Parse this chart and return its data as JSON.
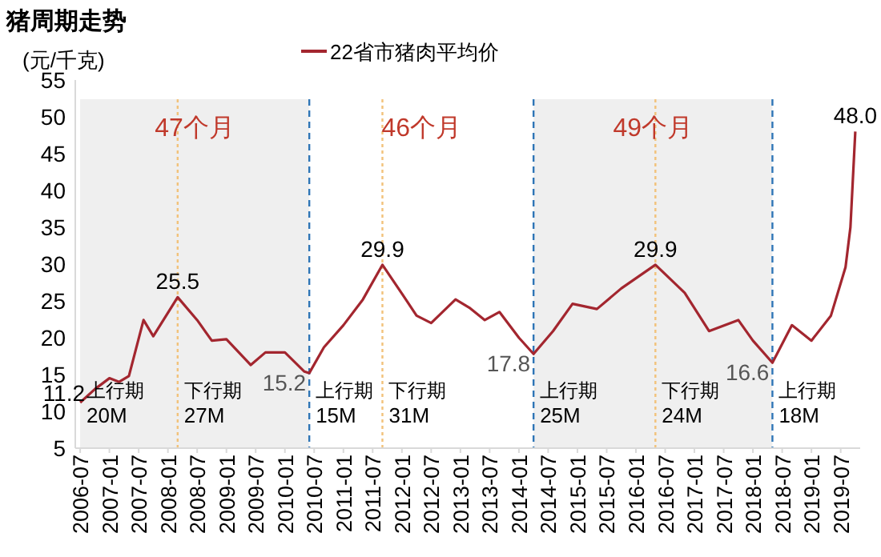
{
  "chart_data": {
    "type": "line",
    "title": "猪周期走势",
    "ylabel": "(元/千克)",
    "legend": "top",
    "x": [
      "2006-07",
      "2006-10",
      "2007-01",
      "2007-03",
      "2007-05",
      "2007-08",
      "2007-10",
      "2008-03",
      "2008-07",
      "2008-10",
      "2009-01",
      "2009-06",
      "2009-09",
      "2010-01",
      "2010-05",
      "2010-06",
      "2010-09",
      "2011-01",
      "2011-05",
      "2011-09",
      "2012-01",
      "2012-04",
      "2012-07",
      "2012-12",
      "2013-03",
      "2013-06",
      "2013-09",
      "2014-01",
      "2014-04",
      "2014-08",
      "2014-12",
      "2015-05",
      "2015-10",
      "2016-05",
      "2016-11",
      "2017-04",
      "2017-10",
      "2018-01",
      "2018-05",
      "2018-09",
      "2019-01",
      "2019-05",
      "2019-08",
      "2019-09",
      "2019-10"
    ],
    "series": [
      {
        "name": "22省市猪肉平均价",
        "color": "#a3262f",
        "values": [
          11.2,
          13,
          14.5,
          14,
          14.8,
          22.4,
          20.2,
          25.5,
          22.4,
          19.6,
          19.8,
          16.3,
          18,
          18,
          15.4,
          15.2,
          18.7,
          21.7,
          25.2,
          29.9,
          26,
          23,
          22,
          25.2,
          24,
          22.4,
          23.5,
          20,
          17.8,
          20.9,
          24.6,
          23.9,
          26.7,
          29.9,
          26.1,
          20.9,
          22.4,
          19.6,
          16.6,
          21.7,
          19.6,
          23,
          29.6,
          35,
          48
        ],
        "value_labels": [
          "11.2",
          null,
          null,
          null,
          null,
          null,
          null,
          "25.5",
          null,
          null,
          null,
          null,
          null,
          null,
          null,
          "15.2",
          null,
          null,
          null,
          "29.9",
          null,
          null,
          null,
          null,
          null,
          null,
          null,
          null,
          "17.8",
          null,
          null,
          null,
          null,
          "29.9",
          null,
          null,
          null,
          null,
          "16.6",
          null,
          null,
          null,
          null,
          null,
          "48.0"
        ]
      }
    ],
    "xlim": [
      "2006-06",
      "2019-11"
    ],
    "xticks": [
      "2006-07",
      "2007-01",
      "2007-07",
      "2008-01",
      "2008-07",
      "2009-01",
      "2009-07",
      "2010-01",
      "2010-07",
      "2011-01",
      "2011-07",
      "2012-01",
      "2012-07",
      "2013-01",
      "2013-07",
      "2014-01",
      "2014-07",
      "2015-01",
      "2015-07",
      "2016-01",
      "2016-07",
      "2017-01",
      "2017-07",
      "2018-01",
      "2018-07",
      "2019-01",
      "2019-07"
    ],
    "ylim": [
      5,
      55
    ],
    "yticks": [
      5,
      10,
      15,
      20,
      25,
      30,
      35,
      40,
      45,
      50,
      55
    ],
    "grid": false,
    "bands": [
      {
        "axis": "x",
        "from": "2006-07",
        "to": "2010-06",
        "color": "#efefef"
      },
      {
        "axis": "x",
        "from": "2014-04",
        "to": "2018-05",
        "color": "#efefef"
      }
    ],
    "ref_lines": [
      {
        "axis": "x",
        "value": "2008-03",
        "color": "#f2c27a",
        "line_style": "dotted"
      },
      {
        "axis": "x",
        "value": "2010-06",
        "color": "#2e75b6",
        "line_style": "dashed"
      },
      {
        "axis": "x",
        "value": "2011-09",
        "color": "#f2c27a",
        "line_style": "dotted"
      },
      {
        "axis": "x",
        "value": "2014-04",
        "color": "#2e75b6",
        "line_style": "dashed"
      },
      {
        "axis": "x",
        "value": "2016-05",
        "color": "#f2c27a",
        "line_style": "dotted"
      },
      {
        "axis": "x",
        "value": "2018-05",
        "color": "#2e75b6",
        "line_style": "dashed"
      }
    ],
    "annotations": [
      "47个月",
      "46个月",
      "49个月",
      "上行期",
      "20M",
      "下行期",
      "27M",
      "上行期",
      "15M",
      "下行期",
      "31M",
      "上行期",
      "25M",
      "下行期",
      "24M",
      "上行期",
      "18M"
    ]
  }
}
